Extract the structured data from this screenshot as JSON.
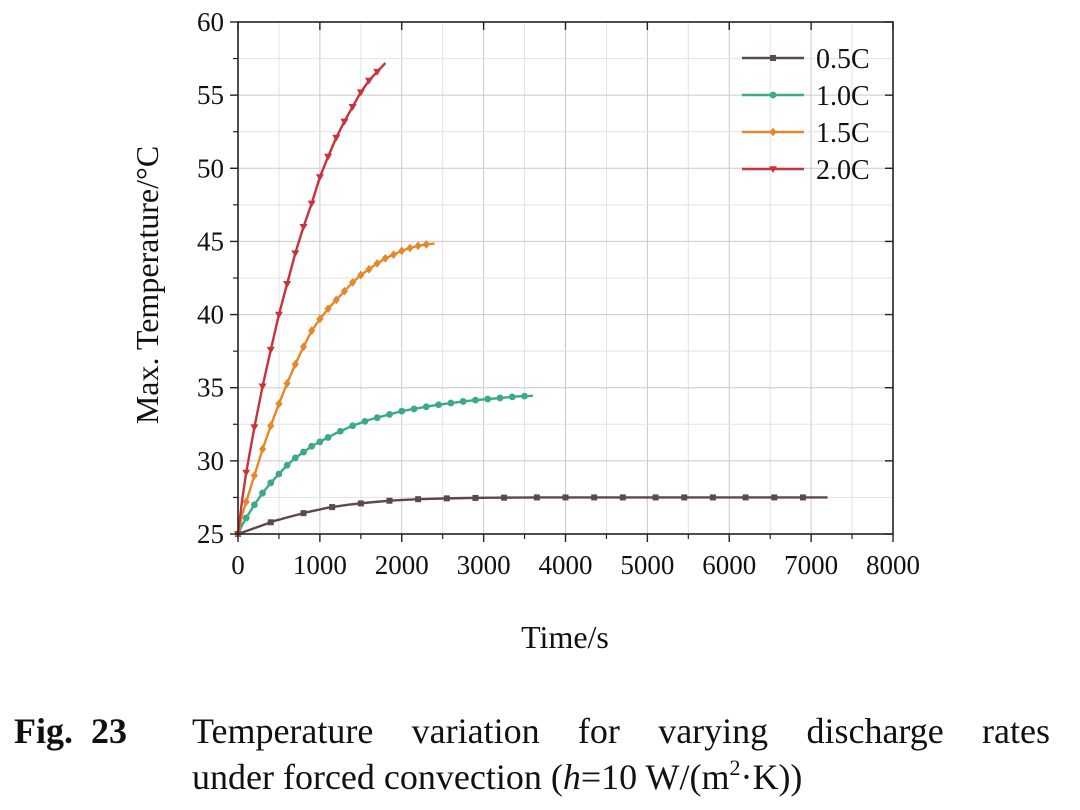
{
  "chart_data": {
    "type": "line",
    "xlabel": "Time/s",
    "ylabel": "Max. Temperature/°C",
    "xlim": [
      0,
      8000
    ],
    "ylim": [
      25,
      60
    ],
    "xticks": [
      0,
      1000,
      2000,
      3000,
      4000,
      5000,
      6000,
      7000,
      8000
    ],
    "yticks": [
      25,
      30,
      35,
      40,
      45,
      50,
      55,
      60
    ],
    "grid": true,
    "legend_position": "top-right",
    "series": [
      {
        "name": "0.5C",
        "color": "#5a4a4a",
        "marker": "square",
        "x": [
          0,
          100,
          250,
          450,
          650,
          850,
          1100,
          1350,
          1600,
          1900,
          2200,
          2500,
          2800,
          3100,
          3400,
          3700,
          4100,
          4500,
          4900,
          5300,
          5700,
          6100,
          6500,
          6900,
          7200
        ],
        "y": [
          25.0,
          25.2,
          25.5,
          25.9,
          26.2,
          26.5,
          26.8,
          27.0,
          27.15,
          27.3,
          27.38,
          27.43,
          27.46,
          27.48,
          27.49,
          27.5,
          27.5,
          27.5,
          27.5,
          27.5,
          27.5,
          27.5,
          27.5,
          27.5,
          27.5
        ],
        "marker_x": [
          0,
          400,
          800,
          1150,
          1500,
          1850,
          2200,
          2550,
          2900,
          3250,
          3650,
          4000,
          4350,
          4700,
          5100,
          5450,
          5800,
          6200,
          6550,
          6900
        ]
      },
      {
        "name": "1.0C",
        "color": "#3aaa88",
        "marker": "circle",
        "x": [
          0,
          50,
          100,
          200,
          300,
          400,
          500,
          600,
          700,
          800,
          900,
          1000,
          1200,
          1400,
          1600,
          1800,
          2000,
          2200,
          2400,
          2600,
          2800,
          3000,
          3200,
          3400,
          3600
        ],
        "y": [
          25.0,
          25.6,
          26.1,
          27.0,
          27.8,
          28.5,
          29.1,
          29.7,
          30.2,
          30.6,
          31.0,
          31.3,
          31.9,
          32.4,
          32.8,
          33.1,
          33.4,
          33.6,
          33.8,
          33.95,
          34.1,
          34.2,
          34.3,
          34.4,
          34.45
        ],
        "marker_x": [
          0,
          100,
          200,
          300,
          400,
          500,
          600,
          700,
          800,
          900,
          1000,
          1100,
          1250,
          1400,
          1550,
          1700,
          1850,
          2000,
          2150,
          2300,
          2450,
          2600,
          2750,
          2900,
          3050,
          3200,
          3350,
          3500
        ]
      },
      {
        "name": "1.5C",
        "color": "#e6882a",
        "marker": "diamond",
        "x": [
          0,
          50,
          100,
          200,
          300,
          400,
          500,
          600,
          700,
          800,
          900,
          1000,
          1100,
          1200,
          1300,
          1400,
          1500,
          1600,
          1700,
          1800,
          1900,
          2000,
          2100,
          2200,
          2300,
          2400
        ],
        "y": [
          25.0,
          26.3,
          27.2,
          29.0,
          30.8,
          32.4,
          33.9,
          35.3,
          36.6,
          37.8,
          38.9,
          39.7,
          40.4,
          41.0,
          41.6,
          42.2,
          42.7,
          43.1,
          43.5,
          43.85,
          44.1,
          44.35,
          44.55,
          44.7,
          44.8,
          44.85
        ],
        "marker_x": [
          0,
          100,
          200,
          300,
          400,
          500,
          600,
          700,
          800,
          900,
          1000,
          1100,
          1200,
          1300,
          1400,
          1500,
          1600,
          1700,
          1800,
          1900,
          2000,
          2100,
          2200,
          2300
        ]
      },
      {
        "name": "2.0C",
        "color": "#c8323a",
        "marker": "triangle-down",
        "x": [
          0,
          50,
          100,
          200,
          300,
          400,
          500,
          600,
          700,
          800,
          900,
          1000,
          1100,
          1200,
          1300,
          1400,
          1500,
          1600,
          1700,
          1800
        ],
        "y": [
          25.0,
          27.3,
          29.2,
          32.3,
          35.1,
          37.6,
          40.0,
          42.1,
          44.2,
          46.0,
          47.6,
          49.4,
          50.8,
          52.1,
          53.2,
          54.2,
          55.2,
          56.0,
          56.6,
          57.2
        ],
        "marker_x": [
          0,
          100,
          200,
          300,
          400,
          500,
          600,
          700,
          800,
          900,
          1000,
          1100,
          1200,
          1300,
          1400,
          1500,
          1600,
          1700
        ]
      }
    ]
  },
  "caption": {
    "label": "Fig.",
    "number": "23",
    "line1": "Temperature variation for varying discharge rates",
    "line2_prefix": "under forced convection (",
    "h_var": "h",
    "line2_mid": "=10 W/(m",
    "sup": "2",
    "line2_suffix": "·K))"
  }
}
